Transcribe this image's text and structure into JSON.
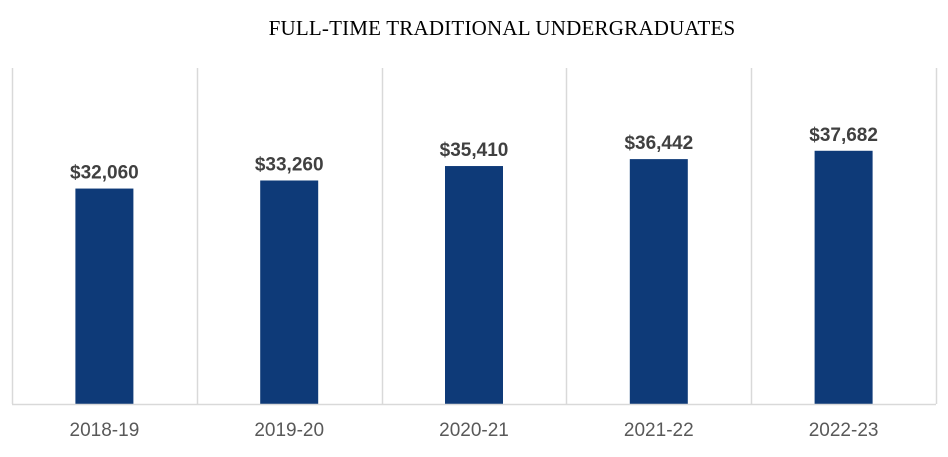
{
  "chart_data": {
    "type": "bar",
    "title": "FULL-TIME TRADITIONAL UNDERGRADUATES",
    "categories": [
      "2018-19",
      "2019-20",
      "2020-21",
      "2021-22",
      "2022-23"
    ],
    "values": [
      32060,
      33260,
      35410,
      36442,
      37682
    ],
    "data_labels": [
      "$32,060",
      "$33,260",
      "$35,410",
      "$36,442",
      "$37,682"
    ],
    "xlabel": "",
    "ylabel": "",
    "ylim": [
      0,
      50000
    ],
    "grid": "vertical category separators",
    "legend": "none",
    "bar_color": "#0e3a78"
  }
}
